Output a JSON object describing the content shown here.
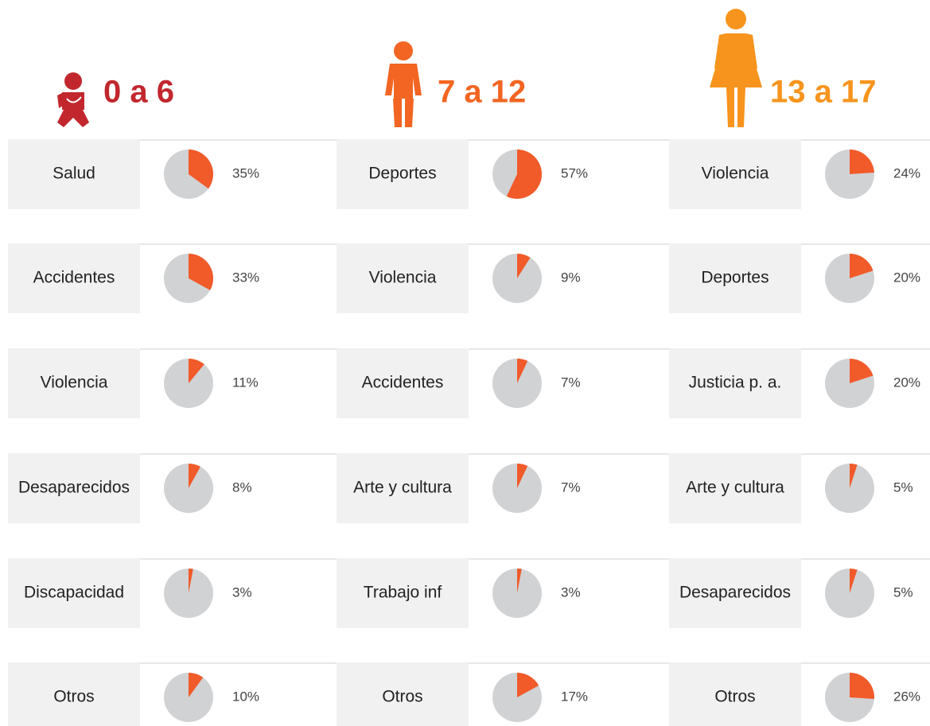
{
  "chart_data": [
    {
      "type": "pie-list",
      "title": "0 a 6",
      "title_color": "#c1272d",
      "color": "#f15a29",
      "rest_color": "#d1d2d4",
      "categories": [
        "Salud",
        "Accidentes",
        "Violencia",
        "Desaparecidos",
        "Discapacidad",
        "Otros"
      ],
      "values": [
        35,
        33,
        11,
        8,
        3,
        10
      ],
      "value_labels": [
        "35%",
        "33%",
        "11%",
        "8%",
        "3%",
        "10%"
      ]
    },
    {
      "type": "pie-list",
      "title": "7 a 12",
      "title_color": "#f26522",
      "color": "#f15a29",
      "rest_color": "#d1d2d4",
      "categories": [
        "Deportes",
        "Violencia",
        "Accidentes",
        "Arte y cultura",
        "Trabajo inf",
        "Otros"
      ],
      "values": [
        57,
        9,
        7,
        7,
        3,
        17
      ],
      "value_labels": [
        "57%",
        "9%",
        "7%",
        "7%",
        "3%",
        "17%"
      ]
    },
    {
      "type": "pie-list",
      "title": "13 a 17",
      "title_color": "#f7941d",
      "color": "#f15a29",
      "rest_color": "#d1d2d4",
      "categories": [
        "Violencia",
        "Deportes",
        "Justicia p. a.",
        "Arte y cultura",
        "Desaparecidos",
        "Otros"
      ],
      "values": [
        24,
        20,
        20,
        5,
        5,
        26
      ],
      "value_labels": [
        "24%",
        "20%",
        "20%",
        "5%",
        "5%",
        "26%"
      ]
    }
  ]
}
